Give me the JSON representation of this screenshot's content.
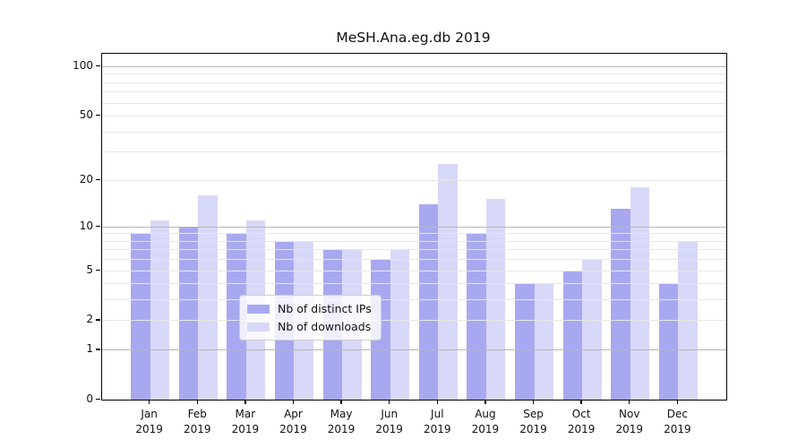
{
  "chart_data": {
    "type": "bar",
    "title": "MeSH.Ana.eg.db 2019",
    "categories": [
      {
        "month": "Jan",
        "year": "2019"
      },
      {
        "month": "Feb",
        "year": "2019"
      },
      {
        "month": "Mar",
        "year": "2019"
      },
      {
        "month": "Apr",
        "year": "2019"
      },
      {
        "month": "May",
        "year": "2019"
      },
      {
        "month": "Jun",
        "year": "2019"
      },
      {
        "month": "Jul",
        "year": "2019"
      },
      {
        "month": "Aug",
        "year": "2019"
      },
      {
        "month": "Sep",
        "year": "2019"
      },
      {
        "month": "Oct",
        "year": "2019"
      },
      {
        "month": "Nov",
        "year": "2019"
      },
      {
        "month": "Dec",
        "year": "2019"
      }
    ],
    "series": [
      {
        "name": "Nb of distinct IPs",
        "color": "#a8a8f0",
        "values": [
          9,
          10,
          9,
          8,
          7,
          6,
          14,
          9,
          4,
          5,
          13,
          4
        ]
      },
      {
        "name": "Nb of downloads",
        "color": "#d8d8f8",
        "values": [
          11,
          16,
          11,
          8,
          7,
          7,
          25,
          15,
          4,
          6,
          18,
          8
        ]
      }
    ],
    "y_axis": {
      "scale": "log10(1+x)",
      "labeled_ticks": [
        0,
        1,
        2,
        5,
        10,
        20,
        50,
        100
      ],
      "minor_ticks": [
        3,
        4,
        6,
        7,
        8,
        9,
        30,
        40,
        60,
        70,
        80,
        90
      ],
      "emphasized_gridlines": [
        1,
        10,
        100
      ],
      "ymax": 119
    },
    "legend": {
      "position": "lower-center",
      "entries": [
        "Nb of distinct IPs",
        "Nb of downloads"
      ]
    },
    "grid": "on"
  },
  "colors": {
    "background": "#ffffff",
    "bar_ips": "#a8a8f0",
    "bar_downloads": "#d8d8f8",
    "grid_minor": "#e7e7e7",
    "grid_major": "#b5b5b5",
    "axis": "#000000",
    "text": "#111111"
  }
}
